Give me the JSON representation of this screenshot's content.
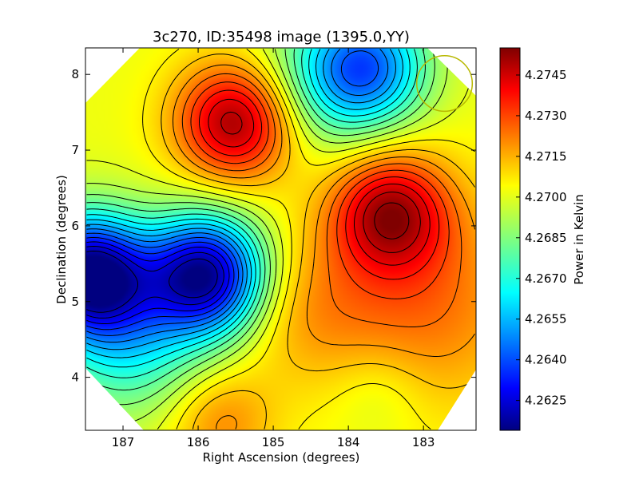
{
  "chart_data": {
    "type": "heatmap",
    "title": "3c270, ID:35498 image (1395.0,YY)",
    "xlabel": "Right Ascension (degrees)",
    "ylabel": "Declination (degrees)",
    "colorbar_label": "Power in Kelvin",
    "xlim": [
      187.5,
      182.3
    ],
    "ylim": [
      3.3,
      8.35
    ],
    "x_ticks": [
      187,
      186,
      185,
      184,
      183
    ],
    "y_ticks": [
      4,
      5,
      6,
      7,
      8
    ],
    "colorbar_range": [
      4.2614,
      4.2755
    ],
    "colorbar_ticks": [
      "4.2625",
      "4.2640",
      "4.2655",
      "4.2670",
      "4.2685",
      "4.2700",
      "4.2715",
      "4.2730",
      "4.2745"
    ],
    "colormap": "jet",
    "contours": true,
    "beam_circle": {
      "ra": 182.72,
      "dec": 7.88,
      "radius_deg": 0.37,
      "color": "#b8b800"
    },
    "features": [
      {
        "kind": "max",
        "ra": 185.5,
        "dec": 7.38,
        "value": 4.2752
      },
      {
        "kind": "max",
        "ra": 183.45,
        "dec": 6.18,
        "value": 4.2745
      },
      {
        "kind": "min",
        "ra": 187.45,
        "dec": 5.35,
        "value": 4.2614
      },
      {
        "kind": "min",
        "ra": 185.9,
        "dec": 5.35,
        "value": 4.2618
      },
      {
        "kind": "min",
        "ra": 183.75,
        "dec": 8.1,
        "value": 4.2652
      }
    ]
  }
}
